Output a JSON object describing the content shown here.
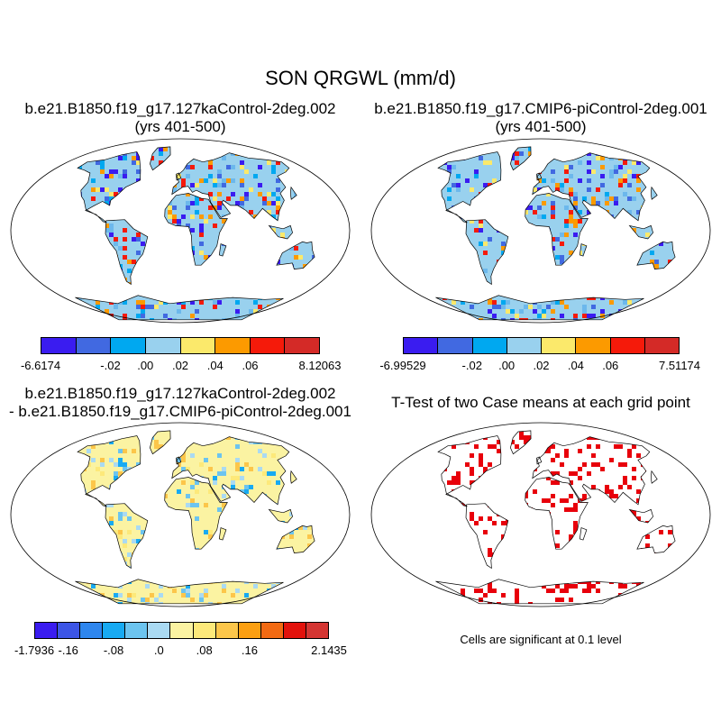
{
  "title": "SON QRGWL (mm/d)",
  "panels": {
    "top_left": {
      "title_line1": "b.e21.B1850.f19_g17.127kaControl-2deg.002",
      "title_line2": "(yrs 401-500)"
    },
    "top_right": {
      "title_line1": "b.e21.B1850.f19_g17.CMIP6-piControl-2deg.001",
      "title_line2": "(yrs 401-500)"
    },
    "bottom_left": {
      "title_line1": "b.e21.B1850.f19_g17.127kaControl-2deg.002",
      "title_line2": "- b.e21.B1850.f19_g17.CMIP6-piControl-2deg.001"
    },
    "bottom_right": {
      "title_line1": "T-Test of two Case means at each grid point"
    }
  },
  "colorbars": {
    "top_left": {
      "colors": [
        "#3a1cf0",
        "#4169e1",
        "#00a8f0",
        "#99d1ee",
        "#fbe96b",
        "#fc9a00",
        "#f51a0a",
        "#d42a27"
      ],
      "labels": [
        "-6.6174",
        "-.02",
        ".00",
        ".02",
        ".04",
        ".06",
        "8.12063"
      ]
    },
    "top_right": {
      "colors": [
        "#3a1cf0",
        "#4169e1",
        "#00a8f0",
        "#99d1ee",
        "#fbe96b",
        "#fc9a00",
        "#f51a0a",
        "#d42a27"
      ],
      "labels": [
        "-6.99529",
        "-.02",
        ".00",
        ".02",
        ".04",
        ".06",
        "7.51174"
      ]
    },
    "bottom_left": {
      "colors": [
        "#3a1cf0",
        "#3c55e6",
        "#2e86ee",
        "#18aaf2",
        "#6cc4ef",
        "#aadaf2",
        "#fbf3a2",
        "#fde97a",
        "#fcc64a",
        "#fb9f12",
        "#f26a13",
        "#e2120c",
        "#d43532"
      ],
      "labels": [
        "-1.7936",
        "-.16",
        "-.08",
        ".0",
        ".08",
        ".16",
        "2.1435"
      ]
    }
  },
  "significance_note": "Cells are significant at 0.1 level"
}
